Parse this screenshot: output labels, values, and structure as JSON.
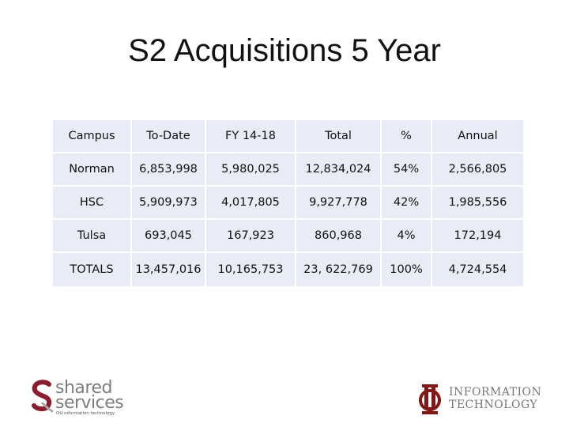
{
  "title": "S2 Acquisitions 5 Year",
  "table": {
    "headers": [
      "Campus",
      "To-Date",
      "FY 14-18",
      "Total",
      "%",
      "Annual"
    ],
    "rows": [
      [
        "Norman",
        "6,853,998",
        "5,980,025",
        "12,834,024",
        "54%",
        "2,566,805"
      ],
      [
        "HSC",
        "5,909,973",
        "4,017,805",
        "9,927,778",
        "42%",
        "1,985,556"
      ],
      [
        "Tulsa",
        "693,045",
        "167,923",
        "860,968",
        "4%",
        "172,194"
      ],
      [
        "TOTALS",
        "13,457,016",
        "10,165,753",
        "23, 622,769",
        "100%",
        "4,724,554"
      ]
    ]
  },
  "logos": {
    "shared_services": {
      "line1": "shared",
      "line2": "services",
      "sub": "OU information technology",
      "accent": "#8c1c2c"
    },
    "information_technology": {
      "line1": "INFORMATION",
      "line2": "TECHNOLOGY",
      "accent": "#841617"
    }
  }
}
